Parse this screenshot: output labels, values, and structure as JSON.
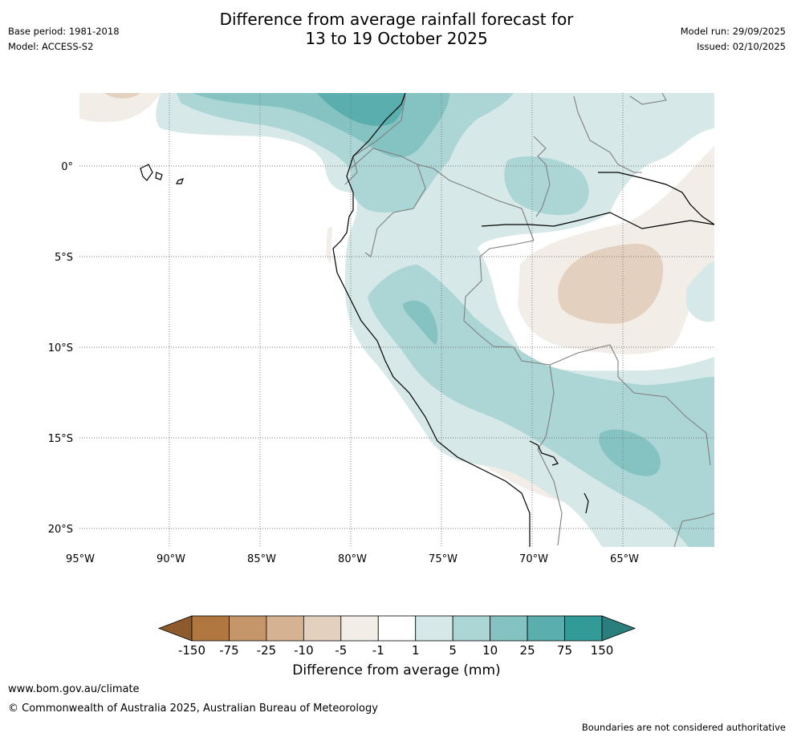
{
  "header": {
    "title_line1": "Difference from average rainfall forecast for",
    "title_line2": "13 to 19 October 2025",
    "base_period": "Base period: 1981-2018",
    "model": "Model: ACCESS-S2",
    "model_run": "Model run: 29/09/2025",
    "issued": "Issued: 02/10/2025"
  },
  "map": {
    "lat_labels": [
      "0°",
      "5°S",
      "10°S",
      "15°S",
      "20°S"
    ],
    "lon_labels": [
      "95°W",
      "90°W",
      "85°W",
      "80°W",
      "75°W",
      "70°W",
      "65°W"
    ]
  },
  "colorbar": {
    "ticks": [
      "-150",
      "-75",
      "-25",
      "-10",
      "-5",
      "-1",
      "1",
      "5",
      "10",
      "25",
      "75",
      "150"
    ],
    "colors": [
      "#8c5a2b",
      "#b07840",
      "#c4966a",
      "#d5b392",
      "#e3d0bf",
      "#f2ede7",
      "#ffffff",
      "#d6e9e8",
      "#acd6d5",
      "#84c3c1",
      "#5aaead",
      "#329b98",
      "#2a7f7c"
    ],
    "label": "Difference from average (mm)"
  },
  "footer": {
    "url": "www.bom.gov.au/climate",
    "copyright": "© Commonwealth of Australia 2025, Australian Bureau of Meteorology",
    "disclaimer": "Boundaries are not considered authoritative"
  }
}
